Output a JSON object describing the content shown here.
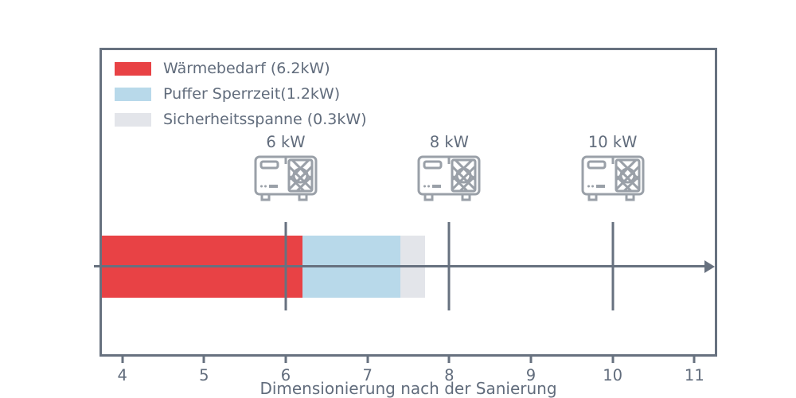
{
  "figure": {
    "background": "#ffffff",
    "frame_color": "#67717f",
    "text_color": "#616c7c",
    "icon_color": "#9aa0a8"
  },
  "legend": {
    "position": "upper-left",
    "items": [
      {
        "label": "Wärmebedarf (6.2kW)",
        "color": "#e84245"
      },
      {
        "label": "Puffer Sperrzeit(1.2kW)",
        "color": "#b8d9ea"
      },
      {
        "label": "Sicherheitsspanne (0.3kW)",
        "color": "#e3e5ea"
      }
    ]
  },
  "chart_data": {
    "type": "bar",
    "subtype": "horizontal-stacked-single-bar",
    "title": "",
    "xlabel": "Dimensionierung nach der Sanierung",
    "ylabel": "",
    "x_ticks": [
      4,
      5,
      6,
      7,
      8,
      9,
      10,
      11
    ],
    "xlim": [
      3.75,
      11.25
    ],
    "grid": false,
    "legend_position": "upper-left",
    "bar_start": 3.75,
    "series": [
      {
        "name": "Wärmebedarf",
        "value_kw": 6.2,
        "start": 3.75,
        "end": 6.2,
        "color": "#e84245",
        "note_clipped_at_axis_min": true
      },
      {
        "name": "Puffer Sperrzeit",
        "value_kw": 1.2,
        "start": 6.2,
        "end": 7.4,
        "color": "#b8d9ea"
      },
      {
        "name": "Sicherheitsspanne",
        "value_kw": 0.3,
        "start": 7.4,
        "end": 7.7,
        "color": "#e3e5ea"
      }
    ],
    "markers": [
      {
        "label": "6 kW",
        "x": 6
      },
      {
        "label": "8 kW",
        "x": 8
      },
      {
        "label": "10 kW",
        "x": 10
      }
    ],
    "arrow_axis": {
      "direction": "right",
      "at_bar_center": true
    }
  }
}
